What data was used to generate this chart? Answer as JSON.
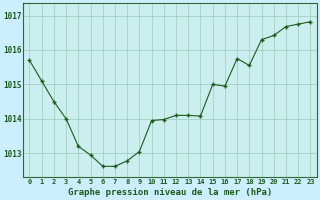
{
  "x": [
    0,
    1,
    2,
    3,
    4,
    5,
    6,
    7,
    8,
    9,
    10,
    11,
    12,
    13,
    14,
    15,
    16,
    17,
    18,
    19,
    20,
    21,
    22,
    23
  ],
  "y": [
    1015.7,
    1015.1,
    1014.5,
    1014.0,
    1013.2,
    1012.95,
    1012.62,
    1012.62,
    1012.78,
    1013.05,
    1013.95,
    1013.98,
    1014.1,
    1014.1,
    1014.08,
    1015.0,
    1014.95,
    1015.75,
    1015.55,
    1016.3,
    1016.42,
    1016.68,
    1016.75,
    1016.82
  ],
  "line_color": "#1a5c1a",
  "marker_color": "#1a5c1a",
  "fig_bg_color": "#cceeff",
  "plot_bg_color": "#cceeee",
  "grid_color": "#99ccbb",
  "xlabel": "Graphe pression niveau de la mer (hPa)",
  "xlabel_color": "#1a5c1a",
  "yticks": [
    1013,
    1014,
    1015,
    1016,
    1017
  ],
  "xlim": [
    -0.5,
    23.5
  ],
  "ylim": [
    1012.3,
    1017.35
  ],
  "tick_label_color": "#1a5c1a",
  "spine_color": "#336633",
  "xtick_fontsize": 5.0,
  "ytick_fontsize": 5.5,
  "xlabel_fontsize": 6.5
}
